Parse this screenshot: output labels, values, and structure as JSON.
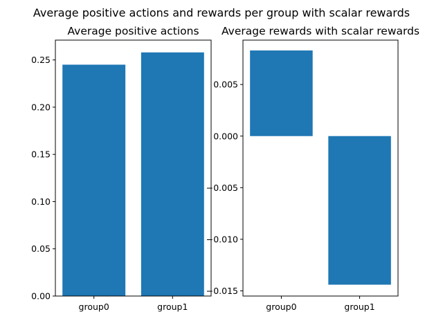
{
  "figure": {
    "title": "Average positive actions and rewards per group with scalar rewards"
  },
  "chart_data": [
    {
      "type": "bar",
      "title": "Average positive actions",
      "categories": [
        "group0",
        "group1"
      ],
      "values": [
        0.245,
        0.258
      ],
      "ylim": [
        0,
        0.271
      ],
      "yticks": [
        0.0,
        0.05,
        0.1,
        0.15,
        0.2,
        0.25
      ],
      "ytick_labels": [
        "0.00",
        "0.05",
        "0.10",
        "0.15",
        "0.20",
        "0.25"
      ],
      "xlabel": "",
      "ylabel": "",
      "grid": false,
      "color": "#1f77b4"
    },
    {
      "type": "bar",
      "title": "Average rewards with scalar rewards",
      "categories": [
        "group0",
        "group1"
      ],
      "values": [
        0.0083,
        -0.0144
      ],
      "ylim": [
        -0.0155,
        0.0093
      ],
      "yticks": [
        0.005,
        0.0,
        -0.005,
        -0.01,
        -0.015
      ],
      "ytick_labels": [
        "0.005",
        "0.000",
        "−0.005",
        "−0.010",
        "−0.015"
      ],
      "xlabel": "",
      "ylabel": "",
      "grid": false,
      "color": "#1f77b4"
    }
  ]
}
